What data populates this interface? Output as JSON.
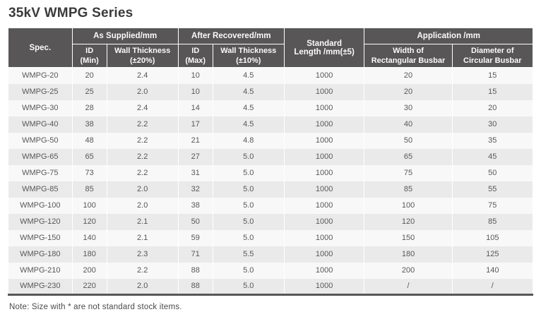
{
  "page": {
    "title": "35kV WMPG Series",
    "note": "Note: Size with * are not standard stock items."
  },
  "colors": {
    "header_bg": "#585657",
    "header_text": "#fbfbfb",
    "row_odd_bg": "#f8f8f8",
    "row_even_bg": "#eaeaea",
    "body_text": "#595757",
    "title_text": "#3a3a3b",
    "bottom_rule": "#585657"
  },
  "table": {
    "header": {
      "spec": "Spec.",
      "as_supplied": "As Supplied/mm",
      "after_recovered": "After Recovered/mm",
      "standard_length": "Standard\nLength /mm(±5)",
      "application": "Application /mm",
      "id_min": "ID\n(Min)",
      "wall_thickness_20": "Wall Thickness\n(±20%)",
      "id_max": "ID\n(Max)",
      "wall_thickness_10": "Wall Thickness\n(±10%)",
      "width_rectangular_busbar": "Width of\nRectangular Busbar",
      "diameter_circular_busbar": "Diameter of\nCircular Busbar"
    },
    "column_keys": [
      "spec",
      "id-min",
      "wall-thickness-20",
      "id-max",
      "wall-thickness-10",
      "standard-length",
      "width-rectangular-busbar",
      "diameter-circular-busbar"
    ],
    "rows": [
      [
        "WMPG-20",
        "20",
        "2.4",
        "10",
        "4.5",
        "1000",
        "20",
        "15"
      ],
      [
        "WMPG-25",
        "25",
        "2.0",
        "10",
        "4.5",
        "1000",
        "20",
        "15"
      ],
      [
        "WMPG-30",
        "28",
        "2.4",
        "14",
        "4.5",
        "1000",
        "30",
        "20"
      ],
      [
        "WMPG-40",
        "38",
        "2.2",
        "17",
        "4.5",
        "1000",
        "40",
        "30"
      ],
      [
        "WMPG-50",
        "48",
        "2.2",
        "21",
        "4.8",
        "1000",
        "50",
        "35"
      ],
      [
        "WMPG-65",
        "65",
        "2.2",
        "27",
        "5.0",
        "1000",
        "65",
        "45"
      ],
      [
        "WMPG-75",
        "73",
        "2.2",
        "31",
        "5.0",
        "1000",
        "75",
        "50"
      ],
      [
        "WMPG-85",
        "85",
        "2.0",
        "32",
        "5.0",
        "1000",
        "85",
        "55"
      ],
      [
        "WMPG-100",
        "100",
        "2.0",
        "38",
        "5.0",
        "1000",
        "100",
        "75"
      ],
      [
        "WMPG-120",
        "120",
        "2.1",
        "50",
        "5.0",
        "1000",
        "120",
        "85"
      ],
      [
        "WMPG-150",
        "140",
        "2.1",
        "59",
        "5.0",
        "1000",
        "150",
        "105"
      ],
      [
        "WMPG-180",
        "180",
        "2.3",
        "71",
        "5.5",
        "1000",
        "180",
        "125"
      ],
      [
        "WMPG-210",
        "200",
        "2.2",
        "88",
        "5.0",
        "1000",
        "200",
        "140"
      ],
      [
        "WMPG-230",
        "220",
        "2.0",
        "88",
        "5.0",
        "1000",
        "/",
        "/"
      ]
    ]
  }
}
